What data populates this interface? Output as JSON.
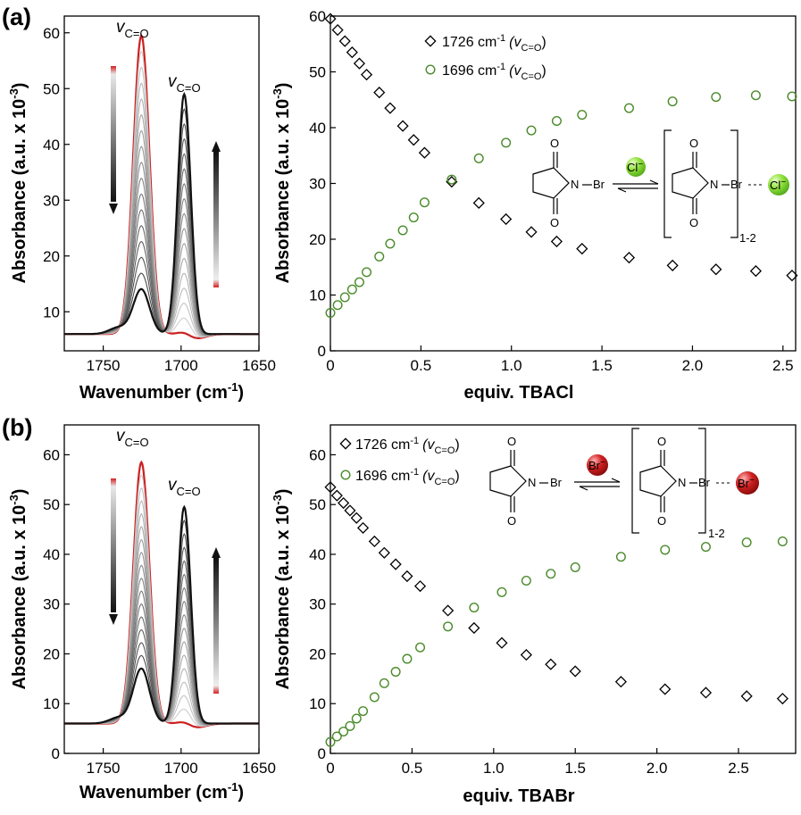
{
  "panels": [
    {
      "label": "(a)",
      "spectrum": {
        "xlabel": "Wavenumber (cm",
        "xlabel_sup": "-1",
        "xlabel_end": ")",
        "ylabel": "Absorbance (a.u. x 10",
        "ylabel_sup": "-3",
        "ylabel_end": ")",
        "x_ticks": [
          "1750",
          "1700",
          "1650"
        ],
        "y_ticks": [
          "10",
          "20",
          "30",
          "40",
          "50",
          "60"
        ],
        "peak_label": "v",
        "peak_sub": "C=O",
        "peak1_height": 59.5,
        "peak2_height": 48.5
      },
      "titration": {
        "xlabel": "equiv. TBACl",
        "ylabel": "Absorbance (a.u. x 10",
        "ylabel_sup": "-3",
        "ylabel_end": ")",
        "x_ticks": [
          "0",
          "0.5",
          "1.0",
          "1.5",
          "2.0",
          "2.5"
        ],
        "y_ticks": [
          "0",
          "10",
          "20",
          "30",
          "40",
          "50",
          "60"
        ],
        "legend": [
          {
            "text": "1726 cm",
            "sup": "-1",
            "paren": "(v",
            "sub": "C=O",
            "close": ")"
          },
          {
            "text": "1696 cm",
            "sup": "-1",
            "paren": "(v",
            "sub": "C=O",
            "close": ")"
          }
        ],
        "scheme": {
          "atom_o": "O",
          "atom_n": "N",
          "atom_br": "Br",
          "ion": "Cl",
          "ion_charge": "−",
          "subscript": "1-2"
        }
      }
    },
    {
      "label": "(b)",
      "spectrum": {
        "xlabel": "Wavenumber (cm",
        "xlabel_sup": "-1",
        "xlabel_end": ")",
        "ylabel": "Absorbance (a.u. x 10",
        "ylabel_sup": "-3",
        "ylabel_end": ")",
        "x_ticks": [
          "1750",
          "1700",
          "1650"
        ],
        "y_ticks": [
          "0",
          "10",
          "20",
          "30",
          "40",
          "50",
          "60"
        ],
        "peak_label": "v",
        "peak_sub": "C=O",
        "peak1_height": 58.5,
        "peak2_height": 49.0
      },
      "titration": {
        "xlabel": "equiv. TBABr",
        "ylabel": "Absorbance (a.u. x 10",
        "ylabel_sup": "-3",
        "ylabel_end": ")",
        "x_ticks": [
          "0",
          "0.5",
          "1.0",
          "1.5",
          "2.0",
          "2.5"
        ],
        "y_ticks": [
          "0",
          "10",
          "20",
          "30",
          "40",
          "50",
          "60"
        ],
        "legend": [
          {
            "text": "1726 cm",
            "sup": "-1",
            "paren": "(v",
            "sub": "C=O",
            "close": ")"
          },
          {
            "text": "1696 cm",
            "sup": "-1",
            "paren": "(v",
            "sub": "C=O",
            "close": ")"
          }
        ],
        "scheme": {
          "atom_o": "O",
          "atom_n": "N",
          "atom_br": "Br",
          "ion": "Br",
          "ion_charge": "−",
          "subscript": "1-2"
        }
      }
    }
  ],
  "colors": {
    "series_1726": "#000000",
    "series_1696": "#4a8a2a",
    "spectrum_initial": "#cc2020",
    "spectrum_final": "#111111",
    "chloride_ball": "#8ee03a",
    "bromide_ball": "#c81818"
  },
  "chart_data": [
    {
      "type": "line",
      "panel": "(a) spectra",
      "xlabel": "Wavenumber (cm-1)",
      "ylabel": "Absorbance (a.u. x 10-3)",
      "xlim": [
        1775,
        1650
      ],
      "ylim": [
        3,
        63
      ],
      "series": [
        {
          "values_peak_1726": 59.5,
          "values_peak_1696": 6.0
        },
        {
          "values_peak_1726": 14.0,
          "values_peak_1696": 48.5
        }
      ]
    },
    {
      "type": "scatter",
      "panel": "(a) titration",
      "xlabel": "equiv. TBACl",
      "ylabel": "Absorbance (a.u. x 10-3)",
      "xlim": [
        0,
        2.57
      ],
      "ylim": [
        0,
        60
      ],
      "series": [
        {
          "name": "1726 cm-1 (vC=O)",
          "x": [
            0.0,
            0.04,
            0.08,
            0.12,
            0.16,
            0.2,
            0.27,
            0.33,
            0.4,
            0.46,
            0.52,
            0.67,
            0.82,
            0.97,
            1.11,
            1.25,
            1.39,
            1.65,
            1.89,
            2.13,
            2.35,
            2.55
          ],
          "y": [
            59.5,
            57.5,
            55.5,
            53.5,
            51.5,
            49.5,
            46.3,
            43.5,
            40.3,
            37.8,
            35.5,
            30.3,
            26.5,
            23.6,
            21.3,
            19.6,
            18.3,
            16.7,
            15.3,
            14.6,
            14.3,
            13.5
          ]
        },
        {
          "name": "1696 cm-1 (vC=O)",
          "x": [
            0.0,
            0.04,
            0.08,
            0.12,
            0.16,
            0.2,
            0.27,
            0.33,
            0.4,
            0.46,
            0.52,
            0.67,
            0.82,
            0.97,
            1.11,
            1.25,
            1.39,
            1.65,
            1.89,
            2.13,
            2.35,
            2.55
          ],
          "y": [
            6.8,
            8.2,
            9.6,
            11.0,
            12.3,
            14.1,
            16.9,
            19.2,
            21.6,
            23.9,
            26.6,
            30.7,
            34.5,
            37.3,
            39.5,
            41.2,
            42.3,
            43.5,
            44.7,
            45.5,
            45.8,
            45.6
          ]
        }
      ]
    },
    {
      "type": "line",
      "panel": "(b) spectra",
      "xlabel": "Wavenumber (cm-1)",
      "ylabel": "Absorbance (a.u. x 10-3)",
      "xlim": [
        1775,
        1650
      ],
      "ylim": [
        0,
        66
      ],
      "series": [
        {
          "values_peak_1726": 58.5,
          "values_peak_1696": 6.0
        },
        {
          "values_peak_1726": 17.0,
          "values_peak_1696": 49.0
        }
      ]
    },
    {
      "type": "scatter",
      "panel": "(b) titration",
      "xlabel": "equiv. TBABr",
      "ylabel": "Absorbance (a.u. x 10-3)",
      "xlim": [
        0,
        2.85
      ],
      "ylim": [
        0,
        66
      ],
      "series": [
        {
          "name": "1726 cm-1 (vC=O)",
          "x": [
            0.0,
            0.04,
            0.08,
            0.12,
            0.16,
            0.2,
            0.27,
            0.33,
            0.4,
            0.47,
            0.55,
            0.72,
            0.88,
            1.05,
            1.2,
            1.35,
            1.5,
            1.78,
            2.05,
            2.3,
            2.55,
            2.77
          ],
          "y": [
            53.5,
            51.8,
            50.3,
            48.8,
            47.3,
            45.3,
            42.6,
            40.3,
            38.0,
            35.6,
            33.6,
            28.7,
            25.2,
            22.2,
            19.8,
            17.9,
            16.5,
            14.4,
            12.9,
            12.2,
            11.5,
            11.0
          ]
        },
        {
          "name": "1696 cm-1 (vC=O)",
          "x": [
            0.0,
            0.04,
            0.08,
            0.12,
            0.16,
            0.2,
            0.27,
            0.33,
            0.4,
            0.47,
            0.55,
            0.72,
            0.88,
            1.05,
            1.2,
            1.35,
            1.5,
            1.78,
            2.05,
            2.3,
            2.55,
            2.77
          ],
          "y": [
            2.3,
            3.4,
            4.4,
            5.5,
            7.0,
            8.5,
            11.3,
            14.1,
            16.4,
            19.0,
            21.3,
            25.5,
            29.3,
            32.4,
            34.7,
            36.1,
            37.4,
            39.5,
            40.9,
            41.5,
            42.4,
            42.6
          ]
        }
      ]
    }
  ]
}
